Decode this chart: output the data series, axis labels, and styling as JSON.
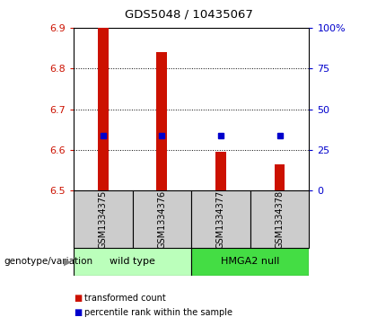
{
  "title": "GDS5048 / 10435067",
  "samples": [
    "GSM1334375",
    "GSM1334376",
    "GSM1334377",
    "GSM1334378"
  ],
  "bar_tops": [
    6.9,
    6.84,
    6.595,
    6.565
  ],
  "bar_bottom": 6.5,
  "blue_values": [
    6.635,
    6.635,
    6.635,
    6.635
  ],
  "ylim_left": [
    6.5,
    6.9
  ],
  "ylim_right": [
    0,
    100
  ],
  "yticks_left": [
    6.5,
    6.6,
    6.7,
    6.8,
    6.9
  ],
  "yticks_right": [
    0,
    25,
    50,
    75,
    100
  ],
  "ytick_labels_right": [
    "0",
    "25",
    "50",
    "75",
    "100%"
  ],
  "bar_color": "#cc1100",
  "blue_color": "#0000cc",
  "group1_label": "wild type",
  "group2_label": "HMGA2 null",
  "group1_color": "#bbffbb",
  "group2_color": "#44dd44",
  "genotype_label": "genotype/variation",
  "legend1": "transformed count",
  "legend2": "percentile rank within the sample",
  "background_color": "#ffffff",
  "plot_bg": "#ffffff",
  "gray_bg": "#cccccc",
  "grid_color": "#000000",
  "bar_width": 0.18
}
